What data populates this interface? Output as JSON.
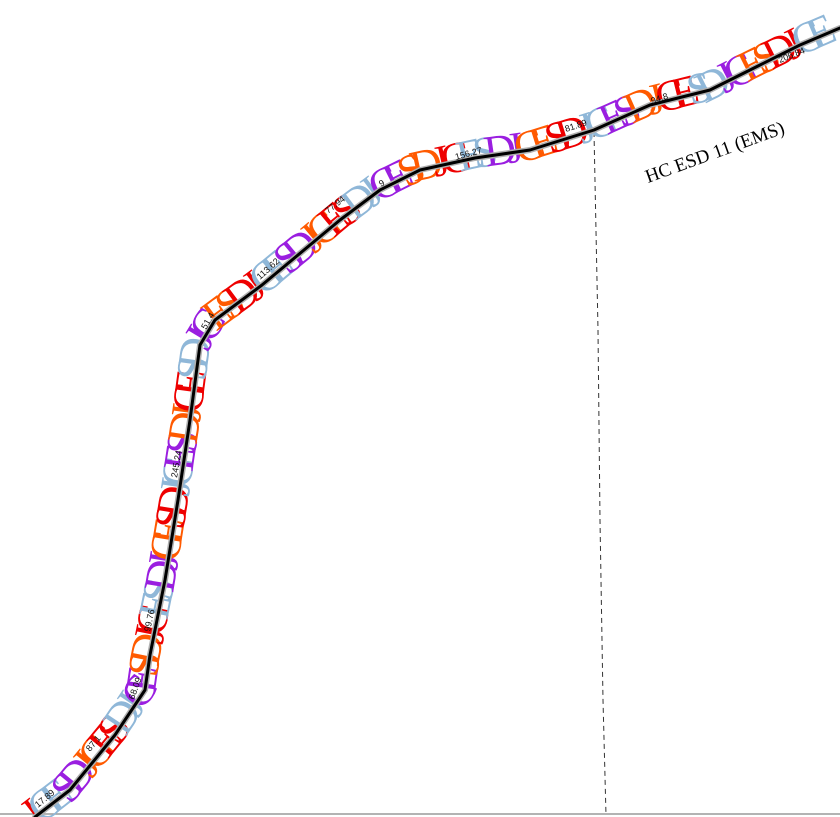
{
  "map": {
    "district_label": "HC ESD 11 (EMS)",
    "colors": {
      "background": "#ffffff",
      "route_line": "#000000",
      "route_casing": "#b0b0b0",
      "boundary": "#333333",
      "letter_palette": [
        "#ee0000",
        "#ff5a00",
        "#9a1ee0",
        "#8fb7d8"
      ]
    },
    "route_letters": "JCESD",
    "segment_labels": [
      "17.89",
      "87.1",
      "68.09",
      "99.76",
      "245.24",
      "51.4",
      "113.62",
      "77.94",
      "9",
      "156.27",
      "81.89",
      "94.8",
      "206.84"
    ]
  }
}
